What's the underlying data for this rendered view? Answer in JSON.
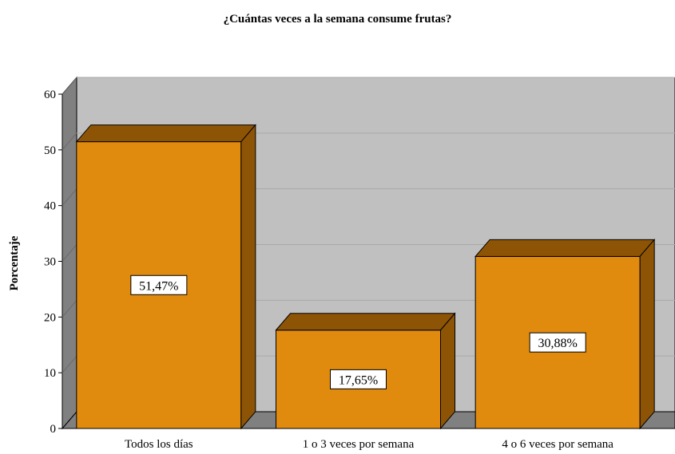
{
  "chart_data": {
    "type": "bar",
    "title": "¿Cuántas veces a la semana consume frutas?",
    "xlabel": "",
    "ylabel": "Porcentaje",
    "categories": [
      "Todos los días",
      "1 o 3 veces por semana",
      "4 o 6 veces por semana"
    ],
    "values": [
      51.47,
      17.65,
      30.88
    ],
    "data_labels": [
      "51,47%",
      "17,65%",
      "30,88%"
    ],
    "ylim": [
      0,
      60
    ],
    "yticks": [
      "0",
      "10",
      "20",
      "30",
      "40",
      "50",
      "60"
    ],
    "grid": true,
    "style": "3d",
    "colors": {
      "bar_front": "#E08A0E",
      "bar_top": "#8E5405",
      "bar_side": "#8E5405",
      "wall": "#C0C0C0",
      "side_wall": "#808080",
      "floor": "#808080",
      "gridline": "#A8A8A8"
    }
  }
}
